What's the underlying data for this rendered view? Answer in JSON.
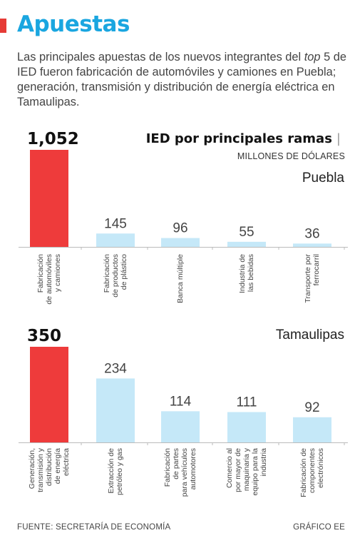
{
  "header": {
    "title": "Apuestas",
    "intro_a": "Las principales apuestas de los nuevos integrantes del ",
    "intro_italic": "top",
    "intro_b": " 5 de IED fueron fabricación de automóviles y camiones en Puebla; generación, transmisión y distribución de energía eléctrica en Tamaulipas."
  },
  "chart_title": "IED por principales ramas",
  "chart_title_mark": "|",
  "unit": "MILLONES DE DÓLARES",
  "colors": {
    "highlight": "#ee3b3b",
    "bar": "#c5e8f8",
    "baseline": "#bbbbbb",
    "title_accent": "#1aa6e0"
  },
  "chart_data": [
    {
      "type": "bar",
      "panel": "Puebla",
      "categories": [
        [
          "Fabricación",
          "de automóviles",
          "y camiones"
        ],
        [
          "Fabricación",
          "de productos",
          "de plástico"
        ],
        [
          "Banca múltiple"
        ],
        [
          "Industria de",
          "las bebidas"
        ],
        [
          "Transporte por",
          "ferrocarril"
        ]
      ],
      "values": [
        1052,
        145,
        96,
        55,
        36
      ],
      "value_labels": [
        "1,052",
        "145",
        "96",
        "55",
        "36"
      ],
      "highlight_index": 0
    },
    {
      "type": "bar",
      "panel": "Tamaulipas",
      "categories": [
        [
          "Generación,",
          "transmisión y",
          "distribución",
          "de energía",
          "eléctrica"
        ],
        [
          "Extracción de",
          "petróleo y gas"
        ],
        [
          "Fabricación",
          "de partes",
          "para vehículos",
          "automotores"
        ],
        [
          "Comercio al",
          "por mayor de",
          "maquinaria y",
          "equipo para la",
          "industria"
        ],
        [
          "Fabricación de",
          "componentes",
          "electrónicos"
        ]
      ],
      "values": [
        350,
        234,
        114,
        111,
        92
      ],
      "value_labels": [
        "350",
        "234",
        "114",
        "111",
        "92"
      ],
      "highlight_index": 0
    }
  ],
  "footer": {
    "source": "FUENTE: SECRETARÍA DE ECONOMÍA",
    "credit": "GRÁFICO EE"
  }
}
